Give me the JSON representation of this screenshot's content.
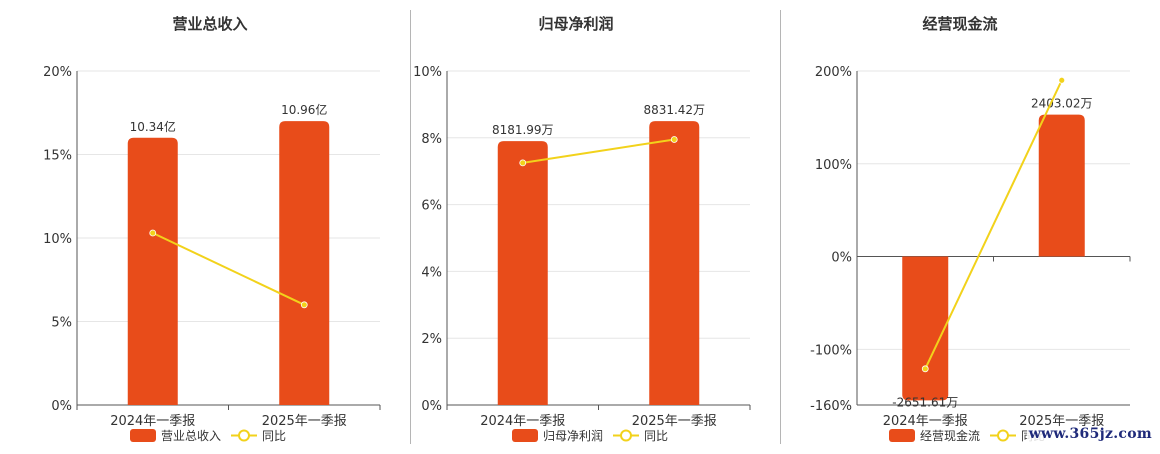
{
  "legend_line_label": "同比",
  "watermark": "www.365jz.com",
  "colors": {
    "bar": "#e84c1a",
    "line": "#f2d21b",
    "axis": "#555555",
    "grid": "#e6e6e6",
    "text": "#333333"
  },
  "chart_data": [
    {
      "type": "bar",
      "title": "营业总收入",
      "categories": [
        "2024年一季报",
        "2025年一季报"
      ],
      "series": [
        {
          "name": "营业总收入",
          "type": "bar",
          "labels": [
            "10.34亿",
            "10.96亿"
          ]
        },
        {
          "name": "同比",
          "type": "line",
          "values": [
            10.3,
            6.0
          ],
          "unit": "%"
        }
      ],
      "ylim": [
        0,
        20
      ],
      "bar_axis_values": [
        16,
        17
      ],
      "yticks": [
        "0%",
        "5%",
        "10%",
        "15%",
        "20%"
      ],
      "ytick_values": [
        0,
        5,
        10,
        15,
        20
      ],
      "grid": true,
      "legend": "bottom"
    },
    {
      "type": "bar",
      "title": "归母净利润",
      "categories": [
        "2024年一季报",
        "2025年一季报"
      ],
      "series": [
        {
          "name": "归母净利润",
          "type": "bar",
          "labels": [
            "8181.99万",
            "8831.42万"
          ]
        },
        {
          "name": "同比",
          "type": "line",
          "values": [
            7.25,
            7.95
          ],
          "unit": "%"
        }
      ],
      "ylim": [
        0,
        10
      ],
      "bar_axis_values": [
        7.9,
        8.5
      ],
      "yticks": [
        "0%",
        "2%",
        "4%",
        "6%",
        "8%",
        "10%"
      ],
      "ytick_values": [
        0,
        2,
        4,
        6,
        8,
        10
      ],
      "grid": true,
      "legend": "bottom"
    },
    {
      "type": "bar",
      "title": "经营现金流",
      "categories": [
        "2024年一季报",
        "2025年一季报"
      ],
      "series": [
        {
          "name": "经营现金流",
          "type": "bar",
          "labels": [
            "-2651.61万",
            "2403.02万"
          ]
        },
        {
          "name": "同比",
          "type": "line",
          "values": [
            -121,
            190
          ],
          "unit": "%"
        }
      ],
      "ylim": [
        -160,
        200
      ],
      "bar_axis_values": [
        -155,
        153
      ],
      "yticks": [
        "-160%",
        "-100%",
        "0%",
        "100%",
        "200%"
      ],
      "ytick_values": [
        -160,
        -100,
        0,
        100,
        200
      ],
      "grid": true,
      "legend": "bottom"
    }
  ]
}
